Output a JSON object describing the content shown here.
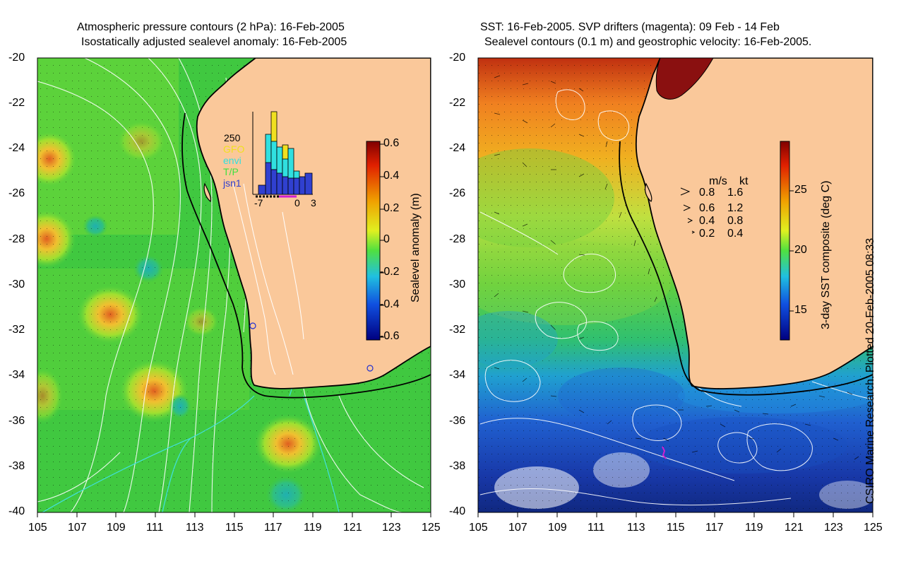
{
  "left_panel": {
    "title_line1": "Atmospheric pressure contours (2 hPa): 16-Feb-2005",
    "title_line2": "Isostatically adjusted sealevel anomaly: 16-Feb-2005",
    "y_ticks": [
      "-20",
      "-22",
      "-24",
      "-26",
      "-28",
      "-30",
      "-32",
      "-34",
      "-36",
      "-38",
      "-40"
    ],
    "x_ticks": [
      "105",
      "107",
      "109",
      "111",
      "113",
      "115",
      "117",
      "119",
      "121",
      "123",
      "125"
    ],
    "colorbar": {
      "label": "Sealevel anomaly (m)",
      "ticks": [
        "0.6",
        "0.4",
        "0.2",
        "0",
        "-0.2",
        "-0.4",
        "-0.6"
      ]
    },
    "inset": {
      "y_label": "250",
      "legend": [
        "GFO",
        "envi",
        "T/P",
        "jsn1"
      ],
      "legend_colors": [
        "#f0e020",
        "#30e0e0",
        "#40e040",
        "#3040d0"
      ],
      "x_ticks": [
        "-7",
        "0",
        "3"
      ]
    }
  },
  "right_panel": {
    "title_line1": "SST: 16-Feb-2005. SVP drifters (magenta): 09 Feb - 14 Feb",
    "title_line2": "Sealevel contours (0.1 m) and geostrophic velocity: 16-Feb-2005.",
    "y_ticks": [
      "-20",
      "-22",
      "-24",
      "-26",
      "-28",
      "-30",
      "-32",
      "-34",
      "-36",
      "-38",
      "-40"
    ],
    "x_ticks": [
      "105",
      "107",
      "109",
      "111",
      "113",
      "115",
      "117",
      "119",
      "121",
      "123",
      "125"
    ],
    "colorbar": {
      "label": "3-day SST composite (deg C)",
      "ticks": [
        "25",
        "20",
        "15"
      ]
    },
    "velocity_legend": {
      "header_ms": "m/s",
      "header_kt": "kt",
      "rows": [
        {
          "ms": "0.8",
          "kt": "1.6"
        },
        {
          "ms": "0.6",
          "kt": "1.2"
        },
        {
          "ms": "0.4",
          "kt": "0.8"
        },
        {
          "ms": "0.2",
          "kt": "0.4"
        }
      ]
    }
  },
  "credit": "CSIRO Marine Research. Plotted 20-Feb-2005 08:33",
  "colors": {
    "land": "#fac89a",
    "sla_background": "#3cc83c",
    "sst_warm": "#e06010",
    "sst_cold": "#1030a0"
  }
}
